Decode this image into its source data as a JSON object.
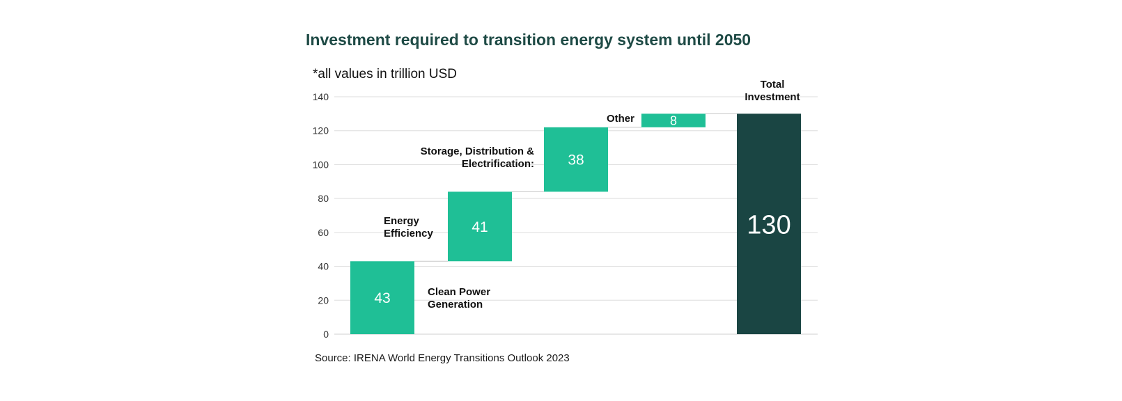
{
  "header": {
    "title": "Investment required to transition energy system until 2050",
    "subtitle": "*all values in trillion USD"
  },
  "footer": {
    "source": "Source: IRENA World Energy Transitions Outlook 2023"
  },
  "chart_data": {
    "type": "bar",
    "subtype": "waterfall",
    "title": "Investment required to transition energy system until 2050",
    "subtitle": "*all values in trillion USD",
    "xlabel": "",
    "ylabel": "",
    "ylim": [
      0,
      140
    ],
    "yticks": [
      0,
      20,
      40,
      60,
      80,
      100,
      120,
      140
    ],
    "grid": true,
    "legend": "none",
    "categories": [
      [
        "Clean Power",
        "Generation"
      ],
      [
        "Energy",
        "Efficiency"
      ],
      [
        "Storage, Distribution &",
        "Electrification:"
      ],
      [
        "Other"
      ],
      [
        "Total",
        "Investment"
      ]
    ],
    "values": [
      43,
      41,
      38,
      8,
      130
    ],
    "bar_kinds": [
      "increment",
      "increment",
      "increment",
      "increment",
      "total"
    ],
    "data_labels": [
      "43",
      "41",
      "38",
      "8",
      "130"
    ],
    "colors": {
      "increment": "#1fbf96",
      "total": "#1a4543",
      "grid": "#dddddd",
      "connector": "#c8c8c8",
      "axis_text": "#333333"
    }
  }
}
